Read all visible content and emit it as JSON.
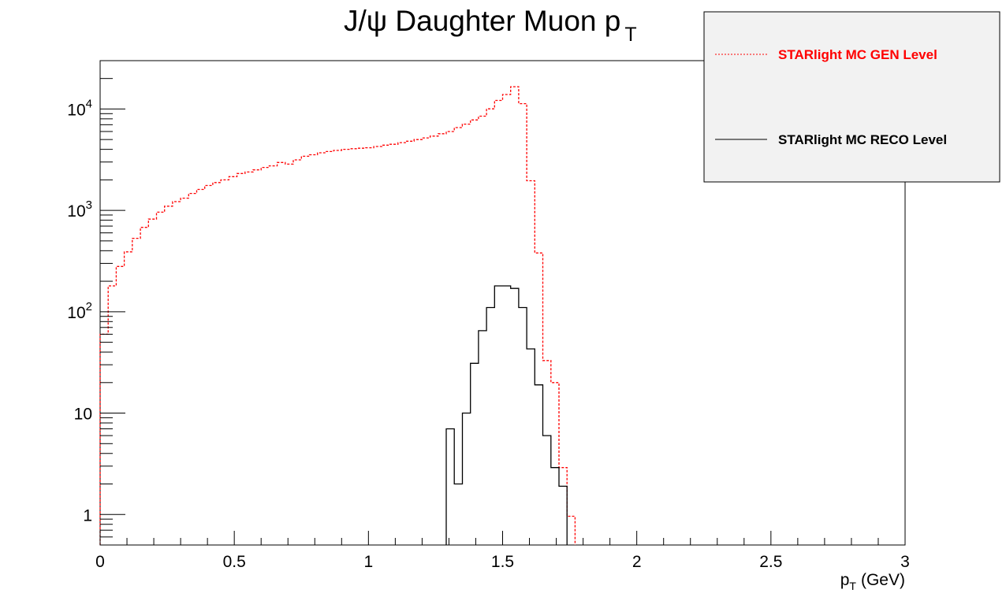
{
  "chart_data": {
    "type": "histogram",
    "title": "J/ψ Daughter Muon p",
    "title_subscript": "T",
    "xlabel": "p",
    "xlabel_subscript": "T",
    "xlabel_unit": "(GeV)",
    "ylabel": "",
    "xlim": [
      0,
      3
    ],
    "ylim": [
      0.5,
      30000
    ],
    "y_scale": "log",
    "grid": false,
    "x_ticks": [
      0,
      0.5,
      1,
      1.5,
      2,
      2.5,
      3
    ],
    "x_tick_labels": [
      "0",
      "0.5",
      "1",
      "1.5",
      "2",
      "2.5",
      "3"
    ],
    "y_tick_labels": [
      {
        "value": 1,
        "base": "1",
        "exp": ""
      },
      {
        "value": 10,
        "base": "10",
        "exp": ""
      },
      {
        "value": 100,
        "base": "10",
        "exp": "2"
      },
      {
        "value": 1000,
        "base": "10",
        "exp": "3"
      },
      {
        "value": 10000,
        "base": "10",
        "exp": "4"
      }
    ],
    "bin_width": 0.03,
    "legend_position": "top-right",
    "series": [
      {
        "name": "STARlight MC GEN Level",
        "color": "#ff0000",
        "line_style": "dotted",
        "bin_start": 0.0,
        "values": [
          60,
          180,
          280,
          390,
          530,
          680,
          820,
          960,
          1100,
          1220,
          1320,
          1470,
          1610,
          1760,
          1880,
          2000,
          2150,
          2310,
          2390,
          2510,
          2650,
          2750,
          2970,
          2860,
          3150,
          3420,
          3540,
          3700,
          3810,
          3900,
          4000,
          4060,
          4100,
          4150,
          4270,
          4400,
          4490,
          4660,
          4810,
          5000,
          5190,
          5410,
          5700,
          6000,
          6560,
          7100,
          7800,
          8500,
          10030,
          12150,
          13900,
          16600,
          11300,
          1960,
          380,
          33,
          20,
          2.9,
          0.96
        ]
      },
      {
        "name": "STARlight MC RECO Level",
        "color": "#000000",
        "line_style": "solid",
        "bin_start": 1.29,
        "values": [
          7,
          2,
          10,
          31,
          65,
          110,
          180,
          180,
          170,
          110,
          43,
          19,
          6,
          2.9,
          1.9
        ]
      }
    ]
  }
}
